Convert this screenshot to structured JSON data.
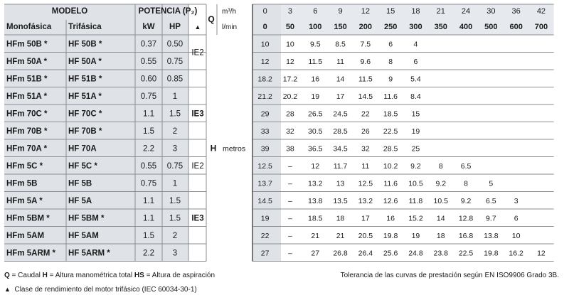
{
  "header": {
    "modelo": "MODELO",
    "monofasica": "Monofásica",
    "trifasica": "Trifásica",
    "potencia": "POTENCIA (P₂)",
    "kw": "kW",
    "hp": "HP",
    "triangle": "▲",
    "q": "Q",
    "unit_m3h": "m³/h",
    "unit_lmin": "l/min"
  },
  "q_m3h": [
    "0",
    "3",
    "6",
    "9",
    "12",
    "15",
    "18",
    "21",
    "24",
    "30",
    "36",
    "42"
  ],
  "q_lmin": [
    "0",
    "50",
    "100",
    "150",
    "200",
    "250",
    "300",
    "350",
    "400",
    "500",
    "600",
    "700"
  ],
  "h_label": "H",
  "metros_label": "metros",
  "classes": [
    {
      "label": "IE2",
      "start": 0,
      "end": 1
    },
    {
      "label": "IE3",
      "start": 2,
      "end": 6
    },
    {
      "label": "IE2",
      "start": 7,
      "end": 7
    },
    {
      "label": "IE3",
      "start": 8,
      "end": 12
    }
  ],
  "rows": [
    {
      "mono": "HFm 50B *",
      "tri": "HF 50B *",
      "kw": "0.37",
      "hp": "0.50",
      "h": [
        "10",
        "10",
        "9.5",
        "8.5",
        "7.5",
        "6",
        "4",
        "",
        "",
        "",
        "",
        ""
      ]
    },
    {
      "mono": "HFm 50A *",
      "tri": "HF 50A *",
      "kw": "0.55",
      "hp": "0.75",
      "h": [
        "12",
        "12",
        "11.5",
        "11",
        "9.6",
        "8",
        "6",
        "",
        "",
        "",
        "",
        ""
      ]
    },
    {
      "mono": "HFm 51B *",
      "tri": "HF 51B *",
      "kw": "0.60",
      "hp": "0.85",
      "h": [
        "18.2",
        "17.2",
        "16",
        "14",
        "11.5",
        "9",
        "5.4",
        "",
        "",
        "",
        "",
        ""
      ]
    },
    {
      "mono": "HFm 51A *",
      "tri": "HF 51A *",
      "kw": "0.75",
      "hp": "1",
      "h": [
        "21.2",
        "20.2",
        "19",
        "17",
        "14.5",
        "11.6",
        "8.4",
        "",
        "",
        "",
        "",
        ""
      ]
    },
    {
      "mono": "HFm 70C *",
      "tri": "HF 70C *",
      "kw": "1.1",
      "hp": "1.5",
      "h": [
        "29",
        "28",
        "26.5",
        "24.5",
        "22",
        "18.5",
        "15",
        "",
        "",
        "",
        "",
        ""
      ]
    },
    {
      "mono": "HFm 70B *",
      "tri": "HF 70B *",
      "kw": "1.5",
      "hp": "2",
      "h": [
        "33",
        "32",
        "30.5",
        "28.5",
        "26",
        "22.5",
        "19",
        "",
        "",
        "",
        "",
        ""
      ]
    },
    {
      "mono": "HFm 70A *",
      "tri": "HF 70A",
      "kw": "2.2",
      "hp": "3",
      "h": [
        "39",
        "38",
        "36.5",
        "34.5",
        "32",
        "28.5",
        "25",
        "",
        "",
        "",
        "",
        ""
      ]
    },
    {
      "mono": "HFm 5C *",
      "tri": "HF 5C *",
      "kw": "0.55",
      "hp": "0.75",
      "h": [
        "12.5",
        "–",
        "12",
        "11.7",
        "11",
        "10.2",
        "9.2",
        "8",
        "6.5",
        "",
        "",
        ""
      ]
    },
    {
      "mono": "HFm 5B",
      "tri": "HF 5B",
      "kw": "0.75",
      "hp": "1",
      "h": [
        "13.7",
        "–",
        "13.2",
        "13",
        "12.5",
        "11.6",
        "10.5",
        "9.2",
        "8",
        "5",
        "",
        ""
      ]
    },
    {
      "mono": "HFm 5A *",
      "tri": "HF 5A",
      "kw": "1.1",
      "hp": "1.5",
      "h": [
        "14.5",
        "–",
        "13.8",
        "13.5",
        "13.2",
        "12.6",
        "11.8",
        "10.5",
        "9.2",
        "6.5",
        "3",
        ""
      ]
    },
    {
      "mono": "HFm 5BM *",
      "tri": "HF 5BM *",
      "kw": "1.1",
      "hp": "1.5",
      "h": [
        "19",
        "–",
        "18.5",
        "18",
        "17",
        "16",
        "15.2",
        "14",
        "12.8",
        "9.7",
        "6",
        ""
      ]
    },
    {
      "mono": "HFm 5AM",
      "tri": "HF 5AM",
      "kw": "1.5",
      "hp": "2",
      "h": [
        "22",
        "–",
        "21",
        "21",
        "20.5",
        "19.8",
        "19",
        "18",
        "16.8",
        "13.8",
        "10",
        ""
      ]
    },
    {
      "mono": "HFm 5ARM *",
      "tri": "HF 5ARM *",
      "kw": "2.2",
      "hp": "3",
      "h": [
        "27",
        "–",
        "27",
        "26.8",
        "26.4",
        "25.6",
        "24.8",
        "23.8",
        "22.5",
        "19.8",
        "16.2",
        "12"
      ]
    }
  ],
  "footer": {
    "legend_q": "Q",
    "legend_q_text": " = Caudal  ",
    "legend_h": "H",
    "legend_h_text": " = Altura manométrica total  ",
    "legend_hs": "HS",
    "legend_hs_text": " = Altura de aspiración",
    "tolerance": "Tolerancia de las curvas de prestación según EN ISO9906 Grado 3B.",
    "note_triangle": "▲",
    "note_text": "Clase de rendimiento del motor trifásico (IEC 60034-30-1)"
  },
  "colors": {
    "shade": "#dfe3e8",
    "line": "#8a8f96",
    "dark": "#444444",
    "text": "#1a1a1a"
  }
}
